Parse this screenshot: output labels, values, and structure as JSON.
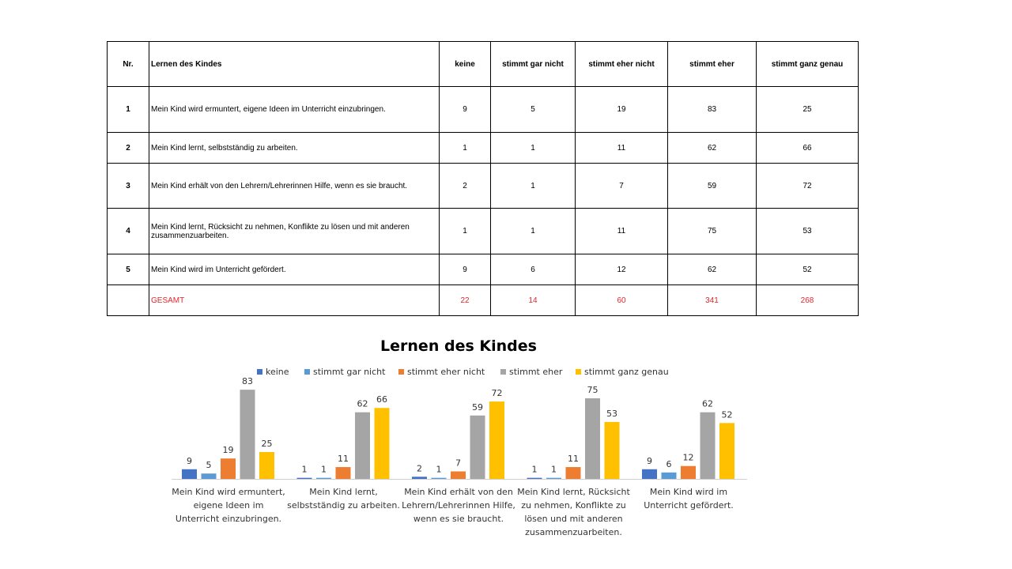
{
  "table": {
    "headers": [
      "Nr.",
      "Lernen des Kindes",
      "keine",
      "stimmt gar nicht",
      "stimmt eher nicht",
      "stimmt eher",
      "stimmt ganz genau"
    ],
    "rows": [
      {
        "nr": "1",
        "item": "Mein Kind wird ermuntert, eigene Ideen im Unterricht einzubringen.",
        "values": [
          "9",
          "5",
          "19",
          "83",
          "25"
        ]
      },
      {
        "nr": "2",
        "item": "Mein Kind lernt, selbstständig zu arbeiten.",
        "values": [
          "1",
          "1",
          "11",
          "62",
          "66"
        ]
      },
      {
        "nr": "3",
        "item": "Mein Kind erhält von den Lehrern/Lehrerinnen Hilfe, wenn es sie braucht.",
        "values": [
          "2",
          "1",
          "7",
          "59",
          "72"
        ]
      },
      {
        "nr": "4",
        "item": "Mein Kind lernt, Rücksicht zu nehmen, Konflikte zu lösen und mit anderen zusammenzuarbeiten.",
        "values": [
          "1",
          "1",
          "11",
          "75",
          "53"
        ]
      },
      {
        "nr": "5",
        "item": "Mein Kind wird im Unterricht gefördert.",
        "values": [
          "9",
          "6",
          "12",
          "62",
          "52"
        ]
      }
    ],
    "total": {
      "nr": "",
      "item": "GESAMT",
      "values": [
        "22",
        "14",
        "60",
        "341",
        "268"
      ]
    }
  },
  "chart_data": {
    "type": "bar",
    "title": "Lernen des Kindes",
    "legend_position": "top",
    "grid": false,
    "ylim": [
      0,
      100
    ],
    "categories": [
      [
        "Mein Kind wird ermuntert,",
        "eigene Ideen im",
        "Unterricht einzubringen."
      ],
      [
        "Mein Kind lernt,",
        "selbstständig zu arbeiten."
      ],
      [
        "Mein Kind erhält von den",
        "Lehrern/Lehrerinnen Hilfe,",
        "wenn es sie braucht."
      ],
      [
        "Mein Kind lernt, Rücksicht",
        "zu nehmen, Konflikte zu",
        "lösen  und mit anderen",
        "zusammenzuarbeiten."
      ],
      [
        "Mein Kind wird im",
        "Unterricht gefördert."
      ]
    ],
    "series": [
      {
        "name": "keine",
        "color": "#4472c4",
        "values": [
          9,
          1,
          2,
          1,
          9
        ]
      },
      {
        "name": "stimmt gar nicht",
        "color": "#5b9bd5",
        "values": [
          5,
          1,
          1,
          1,
          6
        ]
      },
      {
        "name": "stimmt eher nicht",
        "color": "#ed7d31",
        "values": [
          19,
          11,
          7,
          11,
          12
        ]
      },
      {
        "name": "stimmt eher",
        "color": "#a5a5a5",
        "values": [
          83,
          62,
          59,
          75,
          62
        ]
      },
      {
        "name": "stimmt ganz genau",
        "color": "#ffc000",
        "values": [
          25,
          66,
          72,
          53,
          52
        ]
      }
    ]
  }
}
